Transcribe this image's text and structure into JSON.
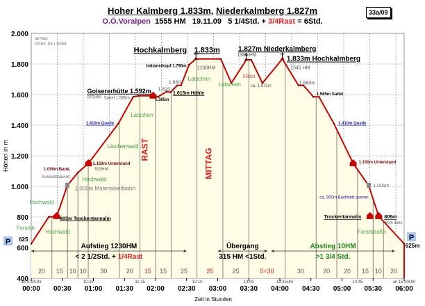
{
  "header": {
    "title_a": "Hoher Kalmberg 1.833m,",
    "title_b": "Niederkalmberg 1.827m",
    "region": "O.Ö.Voralpen",
    "hm": "1555 HM",
    "date": "19.11.09",
    "time_a": "5 1/4Std. +",
    "rest": "3/4Rast",
    "time_b": "= 6Std.",
    "tag": "33a/09"
  },
  "colors": {
    "profile": "#cc0000",
    "fill": "#fffde6",
    "region": "#7a1f8a",
    "rest": "#e02020",
    "forest": "#44a044",
    "spring": "#2020b0",
    "hut": "#7a0000"
  },
  "chart_data": {
    "type": "area",
    "xlabel": "Zeit in Stunden",
    "ylabel": "Höhen in m",
    "xlim": [
      0,
      6
    ],
    "ylim": [
      400,
      2000
    ],
    "grid": true,
    "x_ticks": [
      "00:00",
      "00:30",
      "01:00",
      "01:30",
      "02:00",
      "02:30",
      "03:00",
      "03:30",
      "04:00",
      "04:30",
      "05:00",
      "05:30",
      "06:00"
    ],
    "y_ticks": [
      {
        "v": 2000,
        "l": "2.000"
      },
      {
        "v": 1800,
        "l": "1.800"
      },
      {
        "v": 1600,
        "l": "1.600"
      },
      {
        "v": 1400,
        "l": "1.400"
      },
      {
        "v": 1200,
        "l": "1.200"
      },
      {
        "v": 1000,
        "l": "1.000"
      },
      {
        "v": 800,
        "l": "800"
      },
      {
        "v": 600,
        "l": "600"
      },
      {
        "v": 400,
        "l": "400"
      }
    ],
    "profile": {
      "x": [
        0,
        0.28,
        0.41,
        0.58,
        0.75,
        0.92,
        1.4,
        1.64,
        1.73,
        1.96,
        2.04,
        2.18,
        2.24,
        2.35,
        2.41,
        2.54,
        2.65,
        3.05,
        3.22,
        3.46,
        3.54,
        3.72,
        4.04,
        4.3,
        4.38,
        4.54,
        4.63,
        4.87,
        5.18,
        5.43,
        5.59,
        6.0
      ],
      "y": [
        625,
        800,
        805,
        1005,
        1090,
        1150,
        1410,
        1585,
        1592,
        1592,
        1585,
        1620,
        1615,
        1660,
        1660,
        1795,
        1833,
        1833,
        1675,
        1827,
        1827,
        1675,
        1833,
        1660,
        1660,
        1585,
        1585,
        1410,
        1150,
        1005,
        805,
        625
      ]
    },
    "segments_minutes": [
      {
        "v": "20"
      },
      {
        "v": "15"
      },
      {
        "v": "10"
      },
      {
        "v": "10"
      },
      {
        "v": "30"
      },
      {
        "v": "20"
      },
      {
        "v": "15",
        "rest": true
      },
      {
        "v": "15"
      },
      {
        "v": "25"
      },
      {
        "v": "25",
        "rest": true
      },
      {
        "v": "25"
      },
      {
        "v": "5+30",
        "rest": true
      },
      {
        "v": "30"
      },
      {
        "v": "20"
      },
      {
        "v": "20"
      },
      {
        "v": "15"
      },
      {
        "v": "10"
      },
      {
        "v": "20"
      }
    ],
    "segment_durations": [
      20,
      15,
      10,
      10,
      30,
      20,
      15,
      15,
      25,
      25,
      25,
      35,
      30,
      20,
      20,
      15,
      10,
      20
    ],
    "clock_times": [
      {
        "t": 0,
        "l": "ab 9:30Uhr"
      },
      {
        "t": 0.92,
        "l": "10:25"
      },
      {
        "t": 1.75,
        "l": "11:15"
      },
      {
        "t": 2.67,
        "l": "12:10"
      },
      {
        "t": 3.5,
        "l": "13:00"
      },
      {
        "t": 4.08,
        "l": "13:35Uhr"
      },
      {
        "t": 5.25,
        "l": "14:45"
      },
      {
        "t": 6,
        "l": "an 15:30Uhr"
      }
    ],
    "annotations": [
      {
        "t": 0.06,
        "h": 1960,
        "text": "ab Haid:",
        "c": "#555",
        "s": 5
      },
      {
        "t": 0.06,
        "h": 1925,
        "text": "107km; 1/4-1 1/2Std.",
        "c": "#555",
        "s": 5
      },
      {
        "t": 1.65,
        "h": 1875,
        "text": "Hochkalmberg",
        "c": "#000",
        "s": 11,
        "b": 1,
        "u": 1
      },
      {
        "t": 2.62,
        "h": 1875,
        "text": "1.833m",
        "c": "#000",
        "s": 11,
        "b": 1,
        "u": 1
      },
      {
        "t": 1.85,
        "h": 1780,
        "text": "Indianerkopf 1.795m",
        "c": "#000",
        "s": 6,
        "b": 1
      },
      {
        "t": 2.67,
        "h": 1765,
        "text": "1230HM",
        "c": "#555",
        "s": 7
      },
      {
        "t": 3.33,
        "h": 1885,
        "text": "1.827m Niederkalmberg",
        "c": "#000",
        "s": 10,
        "b": 1,
        "u": 1
      },
      {
        "t": 3.31,
        "h": 1850,
        "text": "1385 HM",
        "c": "#555",
        "s": 7
      },
      {
        "t": 4.11,
        "h": 1820,
        "text": "1.833m Hochkalmberg",
        "c": "#000",
        "s": 10,
        "b": 1,
        "u": 1
      },
      {
        "t": 4.17,
        "h": 1765,
        "text": "1545 HM",
        "c": "#555",
        "s": 7
      },
      {
        "t": 3.4,
        "h": 1710,
        "text": "5Rast",
        "c": "#c05050",
        "s": 7
      },
      {
        "t": 3.53,
        "h": 1650,
        "text": "ca. 1.675m",
        "c": "#555",
        "s": 6
      },
      {
        "t": 2.21,
        "h": 1670,
        "text": "1.660",
        "c": "#555",
        "s": 7
      },
      {
        "t": 2.04,
        "h": 1625,
        "text": "1.620",
        "c": "#555",
        "s": 7
      },
      {
        "t": 2.28,
        "h": 1600,
        "text": "1.615m Höhle",
        "c": "#000",
        "s": 7,
        "b": 1,
        "u": 1
      },
      {
        "t": 1.99,
        "h": 1560,
        "text": "1.585m",
        "c": "#000",
        "s": 6,
        "b": 1
      },
      {
        "t": 0.9,
        "h": 1610,
        "text": "Goisererhütte 1.592m",
        "c": "#000",
        "s": 9,
        "b": 1,
        "u": 1
      },
      {
        "t": 0.9,
        "h": 1575,
        "text": "970HM",
        "c": "#555",
        "s": 6
      },
      {
        "t": 1.17,
        "h": 1570,
        "text": "Sattel 1.585m",
        "c": "#555",
        "s": 6
      },
      {
        "t": 1.6,
        "h": 1455,
        "text": "Latschen",
        "c": "#44a044",
        "s": 8
      },
      {
        "t": 2.52,
        "h": 1690,
        "text": "Latschen",
        "c": "#44a044",
        "s": 8
      },
      {
        "t": 3.01,
        "h": 1655,
        "text": "Latschen",
        "c": "#44a044",
        "s": 8
      },
      {
        "t": 0.88,
        "h": 1405,
        "text": "1.410m Quelle",
        "c": "#2020b0",
        "s": 6,
        "b": 1,
        "u": 1
      },
      {
        "t": 1.22,
        "h": 1250,
        "text": "Lärchenwald",
        "c": "#44a044",
        "s": 8
      },
      {
        "t": 0.99,
        "h": 1140,
        "text": "1.150m Unterstand",
        "c": "#7a0000",
        "s": 6,
        "b": 1
      },
      {
        "t": 1.02,
        "h": 1105,
        "text": "533HM",
        "c": "#555",
        "s": 6
      },
      {
        "t": 0.2,
        "h": 1105,
        "text": "1.090m Bank,",
        "c": "#7a0000",
        "s": 6,
        "b": 1
      },
      {
        "t": 0.17,
        "h": 1055,
        "text": "Aussichtspunkt",
        "c": "#555",
        "s": 6
      },
      {
        "t": 0.82,
        "h": 1035,
        "text": "Hochwald",
        "c": "#44a044",
        "s": 8
      },
      {
        "t": 0.7,
        "h": 975,
        "text": "1.005m Materialseilbahn",
        "c": "#777",
        "s": 8
      },
      {
        "t": -0.03,
        "h": 885,
        "text": "Hochwald",
        "c": "#44a044",
        "s": 8
      },
      {
        "t": 0.46,
        "h": 780,
        "text": "805m Trockentannalm",
        "c": "#000",
        "s": 7,
        "b": 1,
        "u": 1
      },
      {
        "t": -0.24,
        "h": 715,
        "text": "Forststr.",
        "c": "#44a044",
        "s": 8
      },
      {
        "t": 0.23,
        "h": 690,
        "text": "Hochwald",
        "c": "#44a044",
        "s": 8
      },
      {
        "t": 4.59,
        "h": 1595,
        "text": "1.585m Sattel",
        "c": "#000",
        "s": 6,
        "b": 1
      },
      {
        "t": 4.31,
        "h": 1665,
        "text": "1.660m",
        "c": "#555",
        "s": 7
      },
      {
        "t": 4.94,
        "h": 1405,
        "text": "1.410m Quelle",
        "c": "#2020b0",
        "s": 6,
        "b": 1,
        "u": 1
      },
      {
        "t": 5.27,
        "h": 1150,
        "text": "1.150m Unterstand",
        "c": "#7a0000",
        "s": 6,
        "b": 1
      },
      {
        "t": 5.5,
        "h": 995,
        "text": "1.005m",
        "c": "#777",
        "s": 7
      },
      {
        "t": 4.64,
        "h": 920,
        "text": "ca. 900m Bachbett queren",
        "c": "#2020b0",
        "s": 6
      },
      {
        "t": 4.71,
        "h": 790,
        "text": "Trockentannalm",
        "c": "#000",
        "s": 7,
        "b": 1,
        "u": 1
      },
      {
        "t": 5.68,
        "h": 790,
        "text": "805m",
        "c": "#000",
        "s": 7,
        "b": 1,
        "u": 1
      },
      {
        "t": 5.65,
        "h": 755,
        "text": "760m links",
        "c": "#555",
        "s": 6
      },
      {
        "t": 5.25,
        "h": 690,
        "text": "Forststraße",
        "c": "#44a044",
        "s": 8
      },
      {
        "t": -0.2,
        "h": 640,
        "text": "625",
        "c": "#000",
        "s": 8,
        "b": 1
      },
      {
        "t": 6.02,
        "h": 600,
        "text": "625m",
        "c": "#000",
        "s": 8,
        "b": 1
      }
    ],
    "vertical_notes": [
      {
        "t": 1.87,
        "h": 1240,
        "text": "RAST"
      },
      {
        "t": 2.9,
        "h": 1150,
        "text": "MITTAG"
      }
    ],
    "stages": [
      {
        "t0": 0,
        "t1": 2.5,
        "l1": "Aufstieg 1230HM",
        "l2a": "< 2 1/2Std. +",
        "l2b": "1/4Rast",
        "c": "#000"
      },
      {
        "t0": 3.0,
        "t1": 3.8,
        "l1": "Übergang",
        "l2a": "315 HM <1Std.",
        "l2b": "",
        "c": "#000"
      },
      {
        "t0": 3.86,
        "t1": 5.85,
        "l1": "Abstieg 10HM",
        "l2a": ">1 3/4 Std.",
        "l2b": "",
        "c": "#1a8a1a"
      }
    ],
    "parking_label": "P"
  }
}
